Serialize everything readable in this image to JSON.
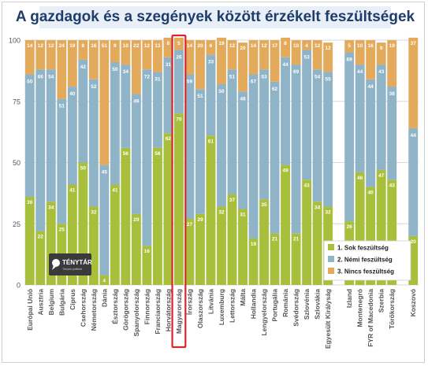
{
  "chart_data": {
    "type": "bar",
    "stacked": true,
    "title": "A gazdagok és a szegények között érzékelt feszültségek",
    "xlabel": "",
    "ylabel": "",
    "ylim": [
      0,
      100
    ],
    "yticks": [
      0,
      25,
      50,
      75,
      100
    ],
    "grid": true,
    "legend_position": "bottom-right",
    "highlighted_category": "Magyarország",
    "categories": [
      "Európai Unió",
      "Ausztria",
      "Belgium",
      "Bulgária",
      "Ciprus",
      "Csehország",
      "Németország",
      "Dánia",
      "Észtország",
      "Görögország",
      "Spanyolország",
      "Finnország",
      "Franciaország",
      "Horvátország",
      "Magyarország",
      "Írország",
      "Olaszország",
      "Litvánia",
      "Luxemburg",
      "Lettország",
      "Málta",
      "Hollandia",
      "Lengyelország",
      "Portugália",
      "Románia",
      "Svédország",
      "Szlovénia",
      "Szlovákia",
      "Egyesült Királyság",
      "Izland",
      "Montenegró",
      "FYR of Macedonia",
      "Szerbia",
      "Törökország",
      "Koszovó"
    ],
    "gaps_after": [
      "Egyesült Királyság",
      "Törökország"
    ],
    "series": [
      {
        "name": "1. Sok feszültség",
        "color": "#a7bf3a",
        "values": [
          36,
          22,
          34,
          25,
          41,
          50,
          32,
          4,
          41,
          56,
          29,
          16,
          56,
          62,
          70,
          27,
          29,
          61,
          32,
          37,
          31,
          19,
          35,
          21,
          49,
          21,
          43,
          34,
          32,
          26,
          46,
          40,
          47,
          43,
          20
        ]
      },
      {
        "name": "2. Némi feszültség",
        "color": "#8fb3c7",
        "values": [
          50,
          66,
          54,
          51,
          40,
          42,
          52,
          45,
          50,
          34,
          49,
          72,
          31,
          31,
          26,
          59,
          51,
          33,
          50,
          51,
          48,
          67,
          53,
          62,
          44,
          69,
          53,
          54,
          55,
          69,
          44,
          44,
          43,
          38,
          44
        ]
      },
      {
        "name": "3. Nincs feszültség",
        "color": "#e4aa5c",
        "values": [
          14,
          12,
          12,
          24,
          19,
          8,
          16,
          51,
          9,
          10,
          22,
          12,
          13,
          8,
          5,
          14,
          20,
          6,
          19,
          12,
          20,
          14,
          12,
          17,
          8,
          10,
          4,
          12,
          12,
          5,
          10,
          16,
          9,
          19,
          37
        ]
      }
    ]
  },
  "logo": {
    "name": "TÉNYTÁR",
    "tagline": "Tények politikai"
  }
}
